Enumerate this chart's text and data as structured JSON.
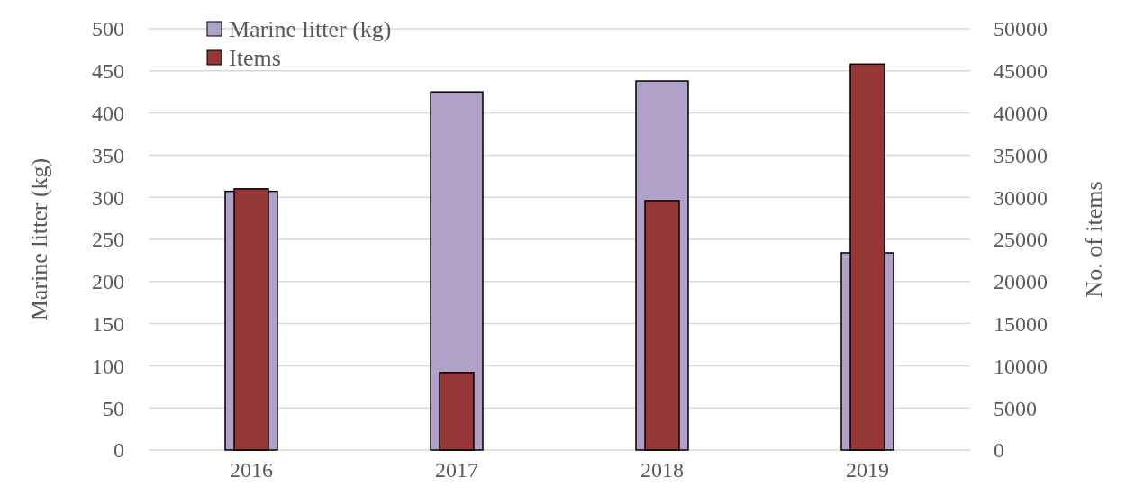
{
  "chart_data": {
    "type": "bar",
    "categories": [
      "2016",
      "2017",
      "2018",
      "2019"
    ],
    "series": [
      {
        "name": "Marine litter (kg)",
        "color": "#b1a0c7",
        "values": [
          307,
          425,
          438,
          234
        ]
      },
      {
        "name": "Items",
        "color": "#953735",
        "values": [
          31000,
          9200,
          29600,
          45800
        ],
        "axis": "y2"
      }
    ],
    "ylabel": "Marine litter (kg)",
    "y2label": "No. of items",
    "ylim": [
      0,
      500
    ],
    "yticks": [
      0,
      50,
      100,
      150,
      200,
      250,
      300,
      350,
      400,
      450,
      500
    ],
    "y2lim": [
      0,
      50000
    ],
    "y2ticks": [
      0,
      5000,
      10000,
      15000,
      20000,
      25000,
      30000,
      35000,
      40000,
      45000,
      50000
    ],
    "grid": "y",
    "legend": "top left"
  }
}
